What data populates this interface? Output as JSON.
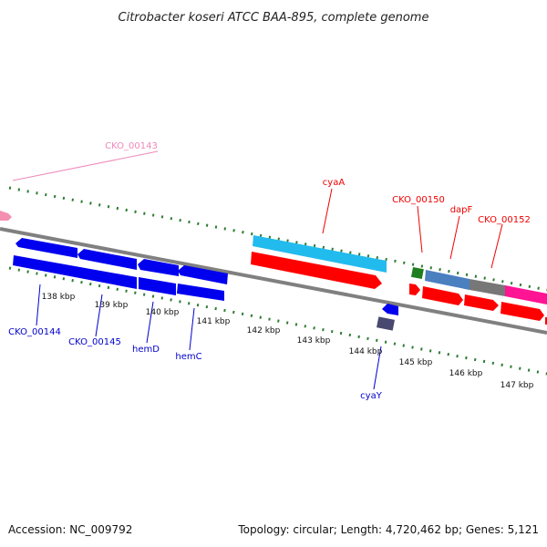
{
  "title": "Citrobacter koseri ATCC BAA-895, complete genome",
  "footer": {
    "accession": "Accession: NC_009792",
    "summary": "Topology: circular; Length: 4,720,462 bp; Genes: 5,121"
  },
  "colors": {
    "backbone": "#808080",
    "tick": "#2e7d32",
    "cds_blue": "#0000ee",
    "cds_red": "#ff0000",
    "cds_cyan": "#22bbee",
    "cds_pink": "#ff1493",
    "cds_gray": "#777777",
    "cds_steel": "#4a7fc0",
    "cds_green": "#1e7d1e",
    "cds_navy": "#484870",
    "label_blue": "#0000cc",
    "label_red": "#ee0000",
    "label_pink": "#ee88bb"
  },
  "scale": {
    "unit": "kbp",
    "ticks": [
      "138 kbp",
      "139 kbp",
      "140 kbp",
      "141 kbp",
      "142 kbp",
      "143 kbp",
      "144 kbp",
      "145 kbp",
      "146 kbp",
      "147 kbp"
    ]
  },
  "gene_labels": [
    {
      "name": "CKO_00143",
      "color": "label_pink"
    },
    {
      "name": "cyaA",
      "color": "label_red"
    },
    {
      "name": "CKO_00150",
      "color": "label_red"
    },
    {
      "name": "dapF",
      "color": "label_red"
    },
    {
      "name": "CKO_00152",
      "color": "label_red"
    },
    {
      "name": "CKO_00144",
      "color": "label_blue"
    },
    {
      "name": "CKO_00145",
      "color": "label_blue"
    },
    {
      "name": "hemD",
      "color": "label_blue"
    },
    {
      "name": "hemC",
      "color": "label_blue"
    },
    {
      "name": "cyaY",
      "color": "label_blue"
    }
  ]
}
